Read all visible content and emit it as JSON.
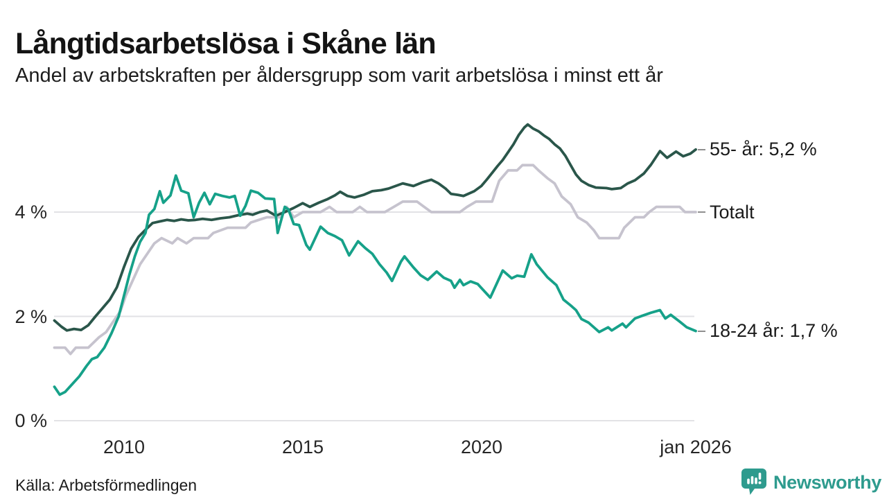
{
  "header": {
    "title": "Långtidsarbetslösa i Skåne län",
    "subtitle": "Andel av arbetskraften per åldersgrupp som varit arbetslösa i minst ett år"
  },
  "footer": {
    "source": "Källa: Arbetsförmedlingen",
    "brand": {
      "name": "Newsworthy",
      "color": "#2E9B8E"
    }
  },
  "colors": {
    "grid": "#E2E2E5",
    "tick_text": "#262626",
    "label_dash": "#8F8F8F"
  },
  "chart_data": {
    "type": "line",
    "x_unit": "decimal_year",
    "xlim": [
      2008.05,
      2026.0
    ],
    "ylim": [
      0,
      5.9
    ],
    "grid": "horizontal",
    "legend_position": "right-end-labels",
    "yticks": [
      {
        "value": 4,
        "label": "4 %"
      },
      {
        "value": 2,
        "label": "2 %"
      },
      {
        "value": 0,
        "label": "0 %"
      }
    ],
    "xticks": [
      {
        "value": 2010,
        "label": "2010"
      },
      {
        "value": 2015,
        "label": "2015"
      },
      {
        "value": 2020,
        "label": "2020"
      },
      {
        "value": 2026,
        "label": "jan 2026"
      }
    ],
    "series": [
      {
        "id": "totalt",
        "name": "Totalt",
        "end_label": "Totalt",
        "color": "#C6C3CE",
        "points": [
          [
            2008.05,
            1.4
          ],
          [
            2008.35,
            1.4
          ],
          [
            2008.5,
            1.28
          ],
          [
            2008.65,
            1.4
          ],
          [
            2009.0,
            1.4
          ],
          [
            2009.15,
            1.5
          ],
          [
            2009.3,
            1.6
          ],
          [
            2009.5,
            1.7
          ],
          [
            2009.7,
            1.9
          ],
          [
            2009.9,
            2.1
          ],
          [
            2010.05,
            2.4
          ],
          [
            2010.25,
            2.7
          ],
          [
            2010.45,
            3.0
          ],
          [
            2010.65,
            3.2
          ],
          [
            2010.85,
            3.4
          ],
          [
            2011.05,
            3.5
          ],
          [
            2011.35,
            3.4
          ],
          [
            2011.5,
            3.5
          ],
          [
            2011.75,
            3.4
          ],
          [
            2011.95,
            3.5
          ],
          [
            2012.35,
            3.5
          ],
          [
            2012.5,
            3.6
          ],
          [
            2012.9,
            3.7
          ],
          [
            2013.4,
            3.7
          ],
          [
            2013.55,
            3.8
          ],
          [
            2014.0,
            3.9
          ],
          [
            2014.4,
            3.9
          ],
          [
            2014.55,
            4.1
          ],
          [
            2014.75,
            3.9
          ],
          [
            2015.0,
            4.0
          ],
          [
            2015.5,
            4.0
          ],
          [
            2015.75,
            4.1
          ],
          [
            2015.95,
            4.0
          ],
          [
            2016.4,
            4.0
          ],
          [
            2016.6,
            4.1
          ],
          [
            2016.8,
            4.0
          ],
          [
            2017.3,
            4.0
          ],
          [
            2017.55,
            4.1
          ],
          [
            2017.8,
            4.2
          ],
          [
            2018.2,
            4.2
          ],
          [
            2018.4,
            4.1
          ],
          [
            2018.6,
            4.0
          ],
          [
            2019.4,
            4.0
          ],
          [
            2019.6,
            4.1
          ],
          [
            2019.85,
            4.2
          ],
          [
            2020.3,
            4.2
          ],
          [
            2020.4,
            4.4
          ],
          [
            2020.5,
            4.6
          ],
          [
            2020.75,
            4.8
          ],
          [
            2021.0,
            4.8
          ],
          [
            2021.15,
            4.9
          ],
          [
            2021.45,
            4.9
          ],
          [
            2021.6,
            4.8
          ],
          [
            2021.85,
            4.65
          ],
          [
            2022.05,
            4.55
          ],
          [
            2022.25,
            4.3
          ],
          [
            2022.5,
            4.15
          ],
          [
            2022.7,
            3.9
          ],
          [
            2022.95,
            3.8
          ],
          [
            2023.15,
            3.65
          ],
          [
            2023.3,
            3.5
          ],
          [
            2023.85,
            3.5
          ],
          [
            2024.0,
            3.7
          ],
          [
            2024.3,
            3.9
          ],
          [
            2024.55,
            3.9
          ],
          [
            2024.7,
            4.0
          ],
          [
            2024.9,
            4.1
          ],
          [
            2025.55,
            4.1
          ],
          [
            2025.7,
            4.0
          ],
          [
            2026.0,
            4.0
          ]
        ]
      },
      {
        "id": "55",
        "name": "55- år",
        "end_label": "55- år: 5,2 %",
        "color": "#2A564A",
        "points": [
          [
            2008.05,
            1.92
          ],
          [
            2008.25,
            1.8
          ],
          [
            2008.4,
            1.73
          ],
          [
            2008.6,
            1.76
          ],
          [
            2008.8,
            1.74
          ],
          [
            2009.0,
            1.83
          ],
          [
            2009.2,
            2.0
          ],
          [
            2009.4,
            2.16
          ],
          [
            2009.6,
            2.32
          ],
          [
            2009.8,
            2.56
          ],
          [
            2010.0,
            2.95
          ],
          [
            2010.2,
            3.3
          ],
          [
            2010.4,
            3.52
          ],
          [
            2010.6,
            3.66
          ],
          [
            2010.8,
            3.79
          ],
          [
            2011.0,
            3.82
          ],
          [
            2011.2,
            3.85
          ],
          [
            2011.4,
            3.83
          ],
          [
            2011.6,
            3.86
          ],
          [
            2011.8,
            3.84
          ],
          [
            2012.0,
            3.85
          ],
          [
            2012.2,
            3.87
          ],
          [
            2012.45,
            3.85
          ],
          [
            2012.7,
            3.88
          ],
          [
            2012.95,
            3.9
          ],
          [
            2013.2,
            3.94
          ],
          [
            2013.45,
            3.97
          ],
          [
            2013.6,
            3.95
          ],
          [
            2013.8,
            4.0
          ],
          [
            2014.0,
            4.03
          ],
          [
            2014.25,
            3.93
          ],
          [
            2014.5,
            4.0
          ],
          [
            2014.75,
            4.08
          ],
          [
            2015.0,
            4.17
          ],
          [
            2015.2,
            4.1
          ],
          [
            2015.45,
            4.18
          ],
          [
            2015.7,
            4.25
          ],
          [
            2015.9,
            4.32
          ],
          [
            2016.05,
            4.39
          ],
          [
            2016.25,
            4.31
          ],
          [
            2016.45,
            4.28
          ],
          [
            2016.7,
            4.33
          ],
          [
            2016.95,
            4.4
          ],
          [
            2017.2,
            4.42
          ],
          [
            2017.4,
            4.45
          ],
          [
            2017.8,
            4.55
          ],
          [
            2018.1,
            4.5
          ],
          [
            2018.35,
            4.57
          ],
          [
            2018.6,
            4.62
          ],
          [
            2018.8,
            4.55
          ],
          [
            2019.0,
            4.45
          ],
          [
            2019.15,
            4.35
          ],
          [
            2019.35,
            4.33
          ],
          [
            2019.5,
            4.31
          ],
          [
            2019.8,
            4.4
          ],
          [
            2020.0,
            4.5
          ],
          [
            2020.15,
            4.62
          ],
          [
            2020.3,
            4.75
          ],
          [
            2020.45,
            4.88
          ],
          [
            2020.6,
            5.0
          ],
          [
            2020.75,
            5.15
          ],
          [
            2020.9,
            5.3
          ],
          [
            2021.05,
            5.48
          ],
          [
            2021.2,
            5.62
          ],
          [
            2021.3,
            5.68
          ],
          [
            2021.45,
            5.6
          ],
          [
            2021.6,
            5.55
          ],
          [
            2021.75,
            5.47
          ],
          [
            2021.9,
            5.4
          ],
          [
            2022.05,
            5.3
          ],
          [
            2022.2,
            5.22
          ],
          [
            2022.35,
            5.08
          ],
          [
            2022.5,
            4.9
          ],
          [
            2022.65,
            4.72
          ],
          [
            2022.8,
            4.6
          ],
          [
            2023.0,
            4.52
          ],
          [
            2023.2,
            4.47
          ],
          [
            2023.5,
            4.46
          ],
          [
            2023.65,
            4.44
          ],
          [
            2023.9,
            4.46
          ],
          [
            2024.1,
            4.55
          ],
          [
            2024.3,
            4.61
          ],
          [
            2024.55,
            4.74
          ],
          [
            2024.75,
            4.91
          ],
          [
            2025.0,
            5.17
          ],
          [
            2025.2,
            5.04
          ],
          [
            2025.45,
            5.16
          ],
          [
            2025.65,
            5.07
          ],
          [
            2025.85,
            5.12
          ],
          [
            2026.0,
            5.2
          ]
        ]
      },
      {
        "id": "18-24",
        "name": "18-24 år",
        "end_label": "18-24 år: 1,7 %",
        "color": "#16A189",
        "points": [
          [
            2008.05,
            0.65
          ],
          [
            2008.2,
            0.5
          ],
          [
            2008.35,
            0.55
          ],
          [
            2008.55,
            0.7
          ],
          [
            2008.75,
            0.85
          ],
          [
            2008.95,
            1.05
          ],
          [
            2009.1,
            1.18
          ],
          [
            2009.25,
            1.22
          ],
          [
            2009.45,
            1.4
          ],
          [
            2009.65,
            1.68
          ],
          [
            2009.85,
            2.0
          ],
          [
            2010.0,
            2.4
          ],
          [
            2010.15,
            2.8
          ],
          [
            2010.3,
            3.15
          ],
          [
            2010.45,
            3.43
          ],
          [
            2010.6,
            3.6
          ],
          [
            2010.7,
            3.95
          ],
          [
            2010.85,
            4.06
          ],
          [
            2011.0,
            4.4
          ],
          [
            2011.1,
            4.18
          ],
          [
            2011.3,
            4.32
          ],
          [
            2011.45,
            4.7
          ],
          [
            2011.6,
            4.41
          ],
          [
            2011.8,
            4.36
          ],
          [
            2011.95,
            3.9
          ],
          [
            2012.1,
            4.18
          ],
          [
            2012.25,
            4.37
          ],
          [
            2012.4,
            4.15
          ],
          [
            2012.55,
            4.35
          ],
          [
            2012.75,
            4.31
          ],
          [
            2012.95,
            4.28
          ],
          [
            2013.1,
            4.31
          ],
          [
            2013.25,
            3.93
          ],
          [
            2013.4,
            4.12
          ],
          [
            2013.55,
            4.41
          ],
          [
            2013.75,
            4.37
          ],
          [
            2013.95,
            4.26
          ],
          [
            2014.2,
            4.25
          ],
          [
            2014.3,
            3.6
          ],
          [
            2014.5,
            4.1
          ],
          [
            2014.6,
            4.05
          ],
          [
            2014.75,
            3.77
          ],
          [
            2014.9,
            3.75
          ],
          [
            2015.1,
            3.37
          ],
          [
            2015.2,
            3.28
          ],
          [
            2015.5,
            3.72
          ],
          [
            2015.7,
            3.6
          ],
          [
            2015.9,
            3.54
          ],
          [
            2016.1,
            3.46
          ],
          [
            2016.3,
            3.17
          ],
          [
            2016.55,
            3.44
          ],
          [
            2016.75,
            3.31
          ],
          [
            2016.95,
            3.2
          ],
          [
            2017.15,
            3.0
          ],
          [
            2017.35,
            2.84
          ],
          [
            2017.5,
            2.68
          ],
          [
            2017.75,
            3.05
          ],
          [
            2017.85,
            3.15
          ],
          [
            2018.1,
            2.94
          ],
          [
            2018.3,
            2.79
          ],
          [
            2018.5,
            2.7
          ],
          [
            2018.75,
            2.86
          ],
          [
            2018.95,
            2.74
          ],
          [
            2019.15,
            2.68
          ],
          [
            2019.25,
            2.55
          ],
          [
            2019.4,
            2.7
          ],
          [
            2019.5,
            2.6
          ],
          [
            2019.7,
            2.67
          ],
          [
            2019.9,
            2.62
          ],
          [
            2020.25,
            2.36
          ],
          [
            2020.6,
            2.88
          ],
          [
            2020.85,
            2.73
          ],
          [
            2021.0,
            2.78
          ],
          [
            2021.2,
            2.76
          ],
          [
            2021.4,
            3.19
          ],
          [
            2021.55,
            3.0
          ],
          [
            2021.85,
            2.75
          ],
          [
            2022.1,
            2.6
          ],
          [
            2022.3,
            2.32
          ],
          [
            2022.5,
            2.21
          ],
          [
            2022.65,
            2.12
          ],
          [
            2022.8,
            1.95
          ],
          [
            2023.0,
            1.88
          ],
          [
            2023.3,
            1.7
          ],
          [
            2023.55,
            1.79
          ],
          [
            2023.65,
            1.73
          ],
          [
            2023.95,
            1.86
          ],
          [
            2024.05,
            1.79
          ],
          [
            2024.3,
            1.96
          ],
          [
            2024.5,
            2.01
          ],
          [
            2024.75,
            2.07
          ],
          [
            2025.0,
            2.12
          ],
          [
            2025.15,
            1.96
          ],
          [
            2025.3,
            2.03
          ],
          [
            2025.55,
            1.9
          ],
          [
            2025.75,
            1.79
          ],
          [
            2026.0,
            1.72
          ]
        ]
      }
    ]
  }
}
